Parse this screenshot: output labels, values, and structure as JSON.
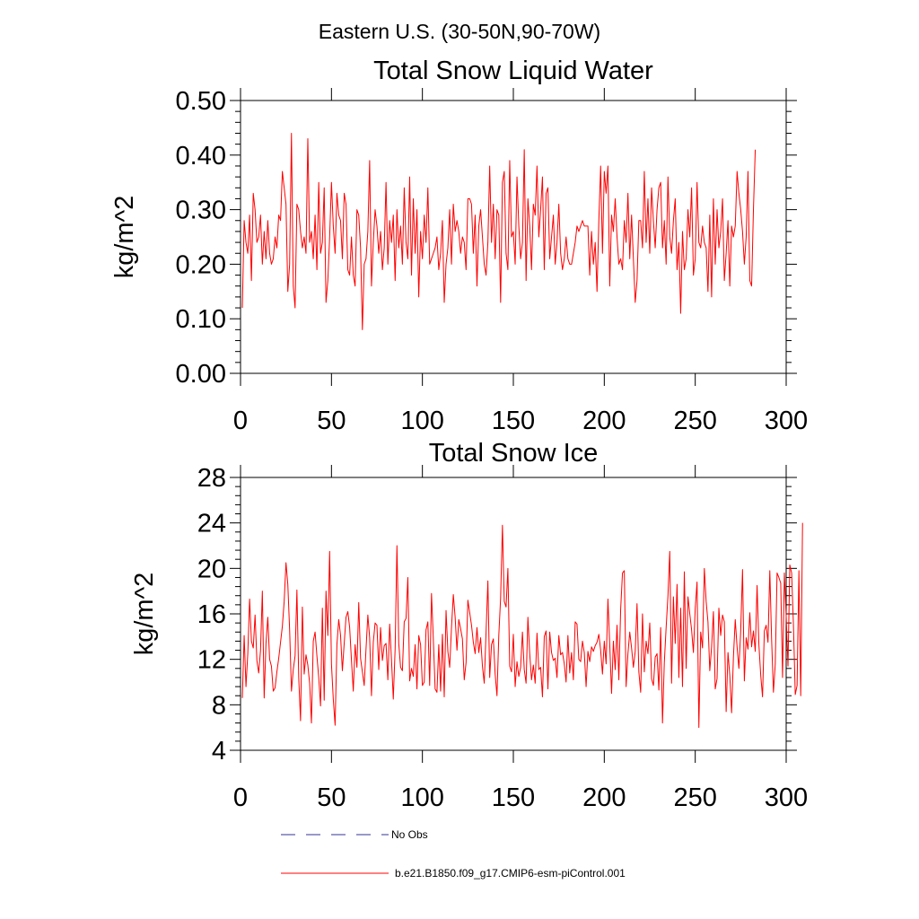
{
  "suptitle": "Eastern U.S. (30-50N,90-70W)",
  "colors": {
    "series": "#ff0000",
    "obs": "#33339a",
    "axis": "#000000"
  },
  "legend": {
    "obs_label": "No Obs",
    "model_label": "b.e21.B1850.f09_g17.CMIP6-esm-piControl.001",
    "placement": "bottom-left"
  },
  "chart_data": [
    {
      "type": "line",
      "title": "Total Snow Liquid Water",
      "xlabel": "",
      "ylabel": "kg/m^2",
      "xlim": [
        0,
        300
      ],
      "ylim": [
        0,
        0.5
      ],
      "xticks": [
        0,
        50,
        100,
        150,
        200,
        250,
        300
      ],
      "xtick_labels": [
        "0",
        "50",
        "100",
        "150",
        "200",
        "250",
        "300"
      ],
      "yticks": [
        0,
        0.1,
        0.2,
        0.3,
        0.4,
        0.5
      ],
      "ytick_labels": [
        "0.00",
        "0.10",
        "0.20",
        "0.30",
        "0.40",
        "0.50"
      ],
      "grid": false,
      "series": [
        {
          "x0": 1,
          "values": [
            0.12,
            0.28,
            0.24,
            0.22,
            0.29,
            0.17,
            0.33,
            0.3,
            0.24,
            0.25,
            0.29,
            0.2,
            0.26,
            0.21,
            0.28,
            0.22,
            0.2,
            0.21,
            0.25,
            0.23,
            0.29,
            0.28,
            0.37,
            0.34,
            0.31,
            0.15,
            0.2,
            0.44,
            0.16,
            0.12,
            0.31,
            0.3,
            0.26,
            0.23,
            0.25,
            0.22,
            0.43,
            0.24,
            0.26,
            0.21,
            0.29,
            0.19,
            0.35,
            0.22,
            0.24,
            0.34,
            0.13,
            0.17,
            0.25,
            0.35,
            0.27,
            0.22,
            0.33,
            0.29,
            0.28,
            0.21,
            0.33,
            0.31,
            0.19,
            0.18,
            0.25,
            0.18,
            0.16,
            0.3,
            0.29,
            0.23,
            0.08,
            0.2,
            0.21,
            0.26,
            0.39,
            0.16,
            0.24,
            0.3,
            0.27,
            0.22,
            0.26,
            0.19,
            0.23,
            0.35,
            0.2,
            0.28,
            0.24,
            0.29,
            0.17,
            0.3,
            0.23,
            0.27,
            0.2,
            0.34,
            0.24,
            0.21,
            0.36,
            0.18,
            0.32,
            0.22,
            0.3,
            0.14,
            0.26,
            0.21,
            0.29,
            0.24,
            0.34,
            0.2,
            0.21,
            0.22,
            0.23,
            0.25,
            0.19,
            0.22,
            0.28,
            0.13,
            0.2,
            0.23,
            0.3,
            0.2,
            0.31,
            0.26,
            0.28,
            0.26,
            0.22,
            0.25,
            0.24,
            0.19,
            0.32,
            0.32,
            0.31,
            0.22,
            0.29,
            0.16,
            0.27,
            0.3,
            0.25,
            0.2,
            0.18,
            0.24,
            0.38,
            0.24,
            0.31,
            0.21,
            0.3,
            0.29,
            0.13,
            0.35,
            0.37,
            0.22,
            0.19,
            0.39,
            0.25,
            0.26,
            0.2,
            0.36,
            0.27,
            0.21,
            0.24,
            0.41,
            0.17,
            0.32,
            0.27,
            0.19,
            0.31,
            0.29,
            0.38,
            0.25,
            0.3,
            0.36,
            0.19,
            0.33,
            0.34,
            0.21,
            0.25,
            0.29,
            0.2,
            0.24,
            0.31,
            0.22,
            0.19,
            0.21,
            0.25,
            0.21,
            0.2,
            0.2,
            0.22,
            0.24,
            0.27,
            0.26,
            0.27,
            0.28,
            0.27,
            0.27,
            0.27,
            0.18,
            0.26,
            0.2,
            0.24,
            0.15,
            0.28,
            0.38,
            0.22,
            0.37,
            0.33,
            0.38,
            0.16,
            0.29,
            0.26,
            0.32,
            0.25,
            0.2,
            0.21,
            0.19,
            0.28,
            0.24,
            0.33,
            0.21,
            0.29,
            0.21,
            0.13,
            0.17,
            0.28,
            0.28,
            0.23,
            0.37,
            0.24,
            0.32,
            0.22,
            0.34,
            0.28,
            0.23,
            0.3,
            0.34,
            0.35,
            0.23,
            0.28,
            0.2,
            0.36,
            0.25,
            0.22,
            0.28,
            0.32,
            0.19,
            0.24,
            0.11,
            0.26,
            0.19,
            0.21,
            0.3,
            0.25,
            0.34,
            0.18,
            0.21,
            0.35,
            0.24,
            0.23,
            0.27,
            0.24,
            0.23,
            0.15,
            0.29,
            0.14,
            0.32,
            0.2,
            0.3,
            0.23,
            0.26,
            0.32,
            0.17,
            0.22,
            0.28,
            0.16,
            0.27,
            0.25,
            0.27,
            0.37,
            0.33,
            0.3,
            0.26,
            0.2,
            0.25,
            0.37,
            0.17,
            0.16,
            0.3,
            0.41
          ]
        }
      ]
    },
    {
      "type": "line",
      "title": "Total Snow Ice",
      "xlabel": "",
      "ylabel": "kg/m^2",
      "xlim": [
        0,
        300
      ],
      "ylim": [
        4,
        28
      ],
      "xticks": [
        0,
        50,
        100,
        150,
        200,
        250,
        300
      ],
      "xtick_labels": [
        "0",
        "50",
        "100",
        "150",
        "200",
        "250",
        "300"
      ],
      "yticks": [
        4,
        8,
        12,
        16,
        20,
        24,
        28
      ],
      "ytick_labels": [
        "4",
        "8",
        "12",
        "16",
        "20",
        "24",
        "28"
      ],
      "grid": false,
      "series": [
        {
          "x0": 1,
          "values": [
            8.6,
            14.1,
            9.6,
            12.5,
            17.3,
            13.6,
            13.0,
            15.9,
            11.9,
            10.8,
            12.8,
            18.0,
            8.6,
            13.4,
            15.7,
            12.0,
            11.4,
            9.2,
            9.5,
            10.9,
            12.1,
            13.5,
            14.9,
            17.1,
            20.5,
            18.6,
            14.6,
            9.2,
            11.1,
            12.3,
            18.1,
            10.4,
            6.6,
            16.6,
            10.7,
            12.4,
            11.5,
            9.9,
            6.4,
            13.6,
            14.4,
            12.3,
            10.4,
            7.9,
            16.5,
            8.4,
            18.0,
            14.1,
            21.5,
            11.6,
            8.5,
            6.2,
            13.3,
            15.5,
            14.1,
            11.0,
            13.4,
            15.7,
            16.2,
            14.8,
            11.9,
            9.2,
            13.3,
            11.3,
            17.0,
            12.1,
            10.9,
            9.7,
            12.9,
            15.9,
            13.9,
            8.8,
            13.5,
            15.2,
            15.0,
            11.1,
            14.8,
            11.9,
            13.2,
            13.4,
            10.2,
            15.1,
            12.0,
            8.5,
            12.9,
            22.0,
            13.4,
            11.3,
            11.0,
            15.3,
            15.6,
            19.2,
            10.1,
            11.2,
            10.5,
            13.3,
            9.4,
            14.1,
            13.3,
            9.7,
            10.0,
            14.6,
            15.3,
            9.7,
            17.8,
            13.8,
            9.4,
            9.1,
            13.3,
            9.2,
            14.2,
            8.7,
            16.3,
            12.7,
            11.3,
            14.8,
            17.7,
            15.7,
            12.8,
            15.5,
            14.7,
            13.8,
            10.2,
            11.7,
            17.2,
            16.1,
            15.0,
            13.5,
            12.5,
            14.8,
            12.6,
            13.9,
            11.4,
            9.9,
            14.4,
            18.9,
            10.4,
            13.3,
            13.8,
            10.7,
            8.8,
            14.1,
            17.4,
            23.8,
            17.1,
            16.6,
            20.0,
            11.4,
            10.9,
            14.2,
            9.6,
            11.8,
            10.5,
            11.3,
            14.4,
            11.1,
            9.9,
            15.7,
            12.5,
            10.2,
            11.5,
            9.9,
            14.3,
            11.1,
            11.3,
            8.7,
            14.0,
            14.5,
            9.4,
            14.4,
            12.6,
            11.9,
            12.1,
            10.4,
            14.1,
            12.4,
            12.6,
            11.6,
            10.0,
            14.1,
            10.8,
            12.6,
            10.2,
            15.3,
            15.1,
            12.0,
            11.8,
            13.6,
            12.6,
            9.6,
            12.7,
            11.8,
            13.1,
            12.7,
            13.2,
            13.5,
            14.2,
            12.8,
            10.7,
            13.6,
            11.6,
            17.3,
            13.3,
            9.0,
            13.6,
            11.1,
            15.0,
            10.2,
            16.4,
            19.6,
            19.8,
            9.6,
            12.5,
            14.4,
            13.0,
            11.3,
            12.7,
            16.9,
            10.9,
            9.1,
            16.0,
            10.9,
            13.6,
            12.5,
            15.2,
            10.3,
            9.7,
            12.2,
            12.5,
            9.3,
            14.8,
            6.4,
            11.7,
            14.8,
            17.6,
            21.5,
            9.9,
            17.5,
            13.4,
            18.6,
            10.4,
            16.5,
            9.6,
            19.7,
            11.2,
            17.5,
            16.0,
            14.6,
            12.6,
            16.5,
            18.8,
            6.0,
            14.4,
            13.0,
            20.0,
            17.1,
            15.3,
            11.0,
            13.1,
            16.2,
            9.4,
            10.3,
            16.5,
            14.1,
            15.9,
            15.3,
            7.4,
            12.6,
            10.6,
            7.3,
            12.2,
            15.5,
            13.1,
            11.2,
            14.5,
            19.9,
            10.1,
            13.9,
            12.9,
            16.1,
            13.1,
            14.5,
            12.7,
            18.5,
            13.3,
            10.6,
            8.7,
            14.5,
            15.0,
            13.5,
            19.8,
            13.7,
            9.1,
            11.6,
            19.6,
            19.2,
            18.7,
            10.4,
            19.6,
            15.8,
            11.4,
            20.3,
            19.6,
            15.0,
            8.9,
            9.7,
            19.8,
            8.8,
            24.0
          ]
        }
      ]
    }
  ]
}
